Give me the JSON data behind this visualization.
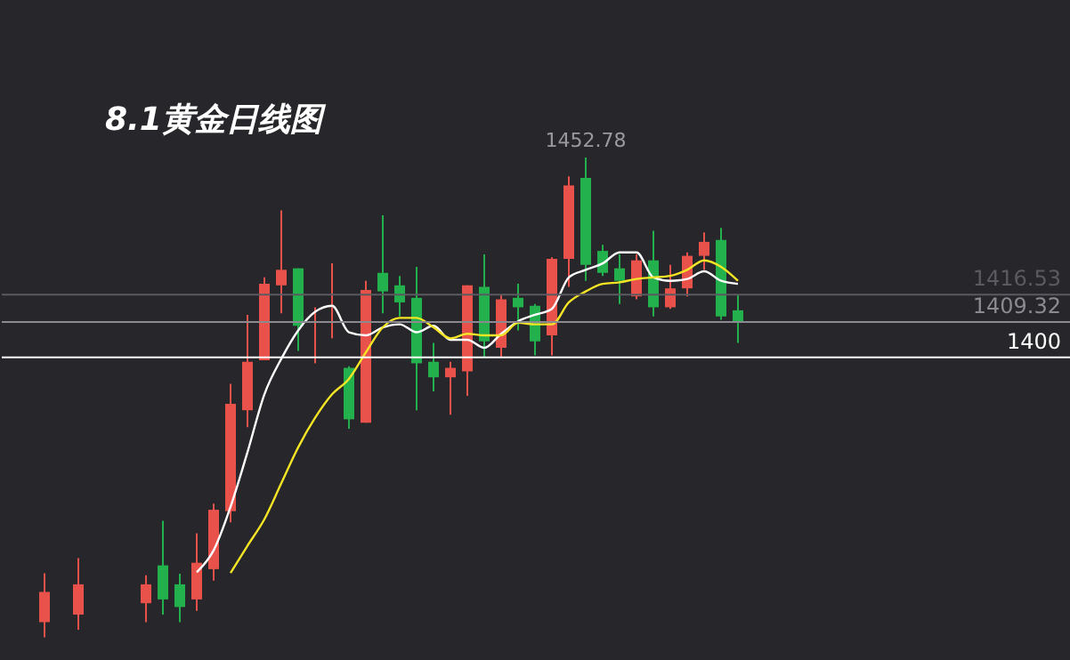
{
  "chart_data": {
    "type": "candlestick",
    "title": "8.1黄金日线图",
    "categories": [
      null,
      null,
      null,
      null,
      null,
      null,
      null,
      null,
      null,
      null,
      null,
      null,
      null,
      null,
      null,
      null,
      null,
      null,
      null,
      null,
      null,
      null,
      null,
      null,
      null,
      null,
      null,
      null,
      null,
      null,
      null,
      null,
      null,
      null,
      null,
      null,
      null,
      null,
      null,
      null,
      null,
      null
    ],
    "ohlc": [
      [
        1330,
        1342.9,
        1326,
        1338
      ],
      null,
      [
        1332,
        1346.9,
        1328,
        1340
      ],
      null,
      null,
      null,
      [
        1335,
        1342.4,
        1330,
        1340
      ],
      [
        1345,
        1356.8,
        1332,
        1336
      ],
      [
        1340,
        1342.8,
        1330,
        1334
      ],
      [
        1336,
        1353.5,
        1333,
        1345.7
      ],
      [
        1344,
        1361.3,
        1341,
        1359.7
      ],
      [
        1359.3,
        1393.0,
        1356.4,
        1387.7
      ],
      [
        1386.0,
        1411.2,
        1381.5,
        1398.8
      ],
      [
        1399.2,
        1421.1,
        1399.2,
        1419.4
      ],
      [
        1419.0,
        1438.8,
        1411.6,
        1423.1
      ],
      [
        1423.5,
        1423.5,
        1401.7,
        1408.3
      ],
      [
        1409.2,
        1413.2,
        1398.4,
        1409.5
      ],
      [
        1409.2,
        1424.8,
        1405.0,
        1409.5
      ],
      [
        1397.2,
        1397.6,
        1381.1,
        1383.6
      ],
      [
        1382.7,
        1420.2,
        1382.7,
        1417.8
      ],
      [
        1422.3,
        1437.5,
        1411.6,
        1417.4
      ],
      [
        1419.0,
        1421.5,
        1410.8,
        1414.5
      ],
      [
        1415.7,
        1423.9,
        1386.0,
        1398.4
      ],
      [
        1398.8,
        1403.8,
        1391.0,
        1394.7
      ],
      [
        1394.7,
        1398.8,
        1384.8,
        1397.2
      ],
      [
        1396.3,
        1419.0,
        1389.8,
        1419.0
      ],
      [
        1418.6,
        1427.2,
        1400.1,
        1404.2
      ],
      [
        1402.5,
        1416.5,
        1400.0,
        1415.3
      ],
      [
        1415.7,
        1419.4,
        1407.1,
        1413.2
      ],
      [
        1413.6,
        1414.1,
        1400.5,
        1404.2
      ],
      [
        1405.8,
        1426.4,
        1400.5,
        1426.0
      ],
      [
        1426.0,
        1447.8,
        1418.6,
        1445.4
      ],
      [
        1447.4,
        1452.78,
        1420.2,
        1424.4
      ],
      [
        1428.1,
        1429.7,
        1421.5,
        1422.3
      ],
      [
        1423.5,
        1427.2,
        1414.1,
        1420.2
      ],
      [
        1416.1,
        1427.2,
        1415.3,
        1425.6
      ],
      [
        1425.6,
        1433.4,
        1410.8,
        1413.2
      ],
      [
        1413.2,
        1424.4,
        1412.8,
        1418.2
      ],
      [
        1418.2,
        1427.7,
        1416.1,
        1426.8
      ],
      [
        1426.8,
        1433.0,
        1423.1,
        1430.5
      ],
      [
        1431.0,
        1434.2,
        1409.9,
        1410.8
      ],
      [
        1412.4,
        1416.5,
        1403.8,
        1409.32
      ]
    ],
    "colors": [
      "#e8524a",
      null,
      "#e8524a",
      null,
      null,
      null,
      "#e8524a",
      "#22b14c",
      "#22b14c",
      "#e8524a",
      "#e8524a",
      "#e8524a",
      "#e8524a",
      "#e8524a",
      "#e8524a",
      "#22b14c",
      "#e8524a",
      "#e8524a",
      "#22b14c",
      "#e8524a",
      "#22b14c",
      "#22b14c",
      "#22b14c",
      "#22b14c",
      "#e8524a",
      "#e8524a",
      "#22b14c",
      "#e8524a",
      "#22b14c",
      "#22b14c",
      "#e8524a",
      "#e8524a",
      "#22b14c",
      "#22b14c",
      "#22b14c",
      "#e8524a",
      "#22b14c",
      "#e8524a",
      "#e8524a",
      "#e8524a",
      "#22b14c",
      "#22b14c"
    ],
    "series": [
      {
        "type": "line",
        "color": "#ffffff",
        "values": [
          null,
          null,
          null,
          null,
          null,
          null,
          null,
          null,
          null,
          1343.2,
          1349.0,
          1360.5,
          1374.9,
          1390.2,
          1399.6,
          1407.1,
          1412.0,
          1413.6,
          1406.6,
          1405.8,
          1407.9,
          1408.7,
          1406.6,
          1408.3,
          1404.6,
          1404.6,
          1402.5,
          1406.2,
          1409.5,
          1411.2,
          1412.8,
          1421.1,
          1423.1,
          1424.8,
          1427.7,
          1427.7,
          1421.1,
          1420.2,
          1420.7,
          1422.7,
          1420.2,
          1419.4
        ]
      },
      {
        "type": "line",
        "color": "#f5e625",
        "values": [
          null,
          null,
          null,
          null,
          null,
          null,
          null,
          null,
          null,
          null,
          null,
          1343.0,
          1350.2,
          1357.2,
          1366.7,
          1376.2,
          1384.0,
          1390.2,
          1394.3,
          1401.3,
          1407.9,
          1410.4,
          1410.4,
          1407.9,
          1405.0,
          1406.2,
          1405.8,
          1405.8,
          1409.1,
          1408.7,
          1408.7,
          1414.5,
          1417.4,
          1419.4,
          1419.8,
          1420.7,
          1421.1,
          1421.5,
          1423.1,
          1425.6,
          1423.9,
          1420.2
        ]
      }
    ],
    "ylim": [
      1320,
      1494.4
    ],
    "tick_labels": false,
    "ref_lines": [
      {
        "axis": "y",
        "value": 1416.53,
        "label": "1416.53",
        "color": "#5a5a60"
      },
      {
        "axis": "y",
        "value": 1409.32,
        "label": "1409.32",
        "color": "#8a8a90"
      },
      {
        "axis": "y",
        "value": 1400,
        "label": "1400",
        "color": "#ffffff"
      }
    ],
    "annotations": [
      {
        "text": "1452.78",
        "y": 1452.78
      }
    ]
  }
}
